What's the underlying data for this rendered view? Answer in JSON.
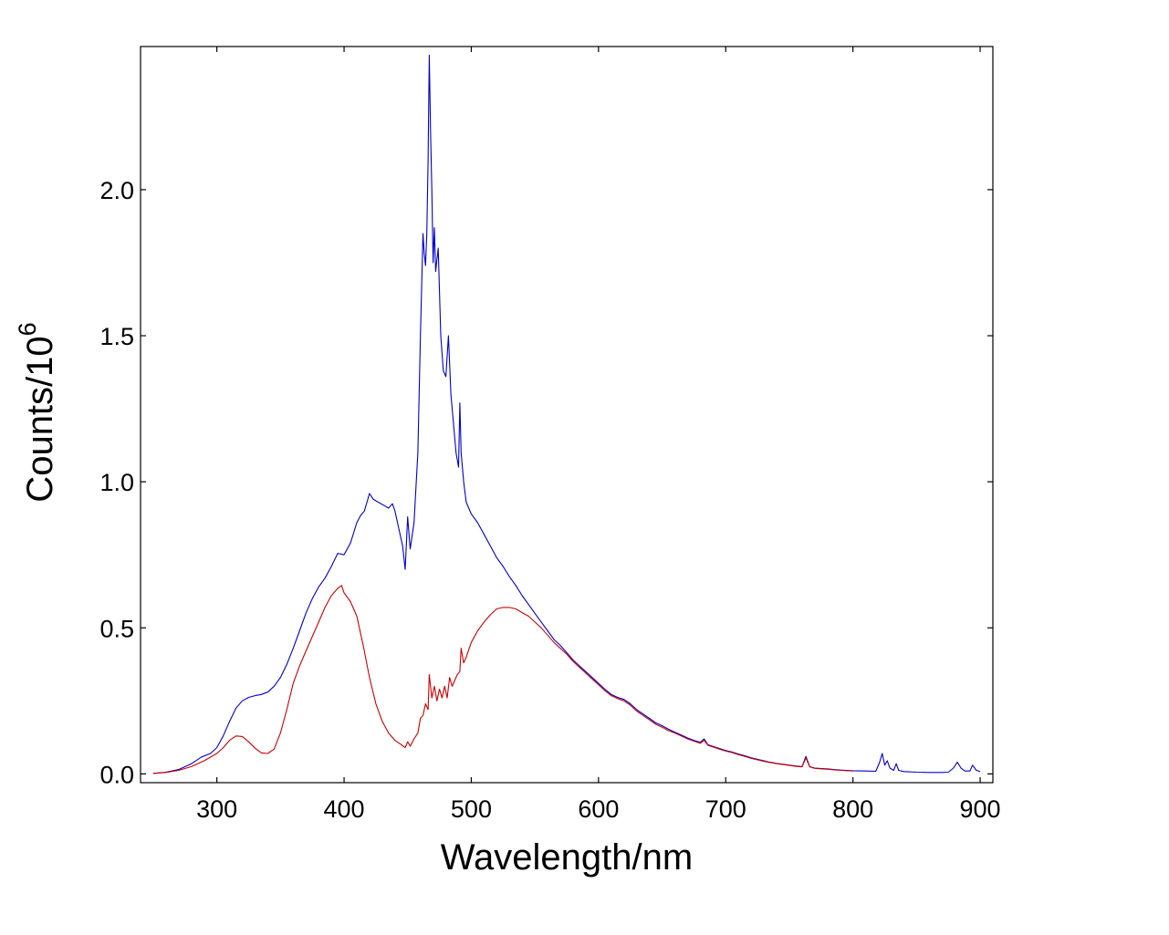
{
  "chart_data": {
    "type": "line",
    "title": "",
    "xlabel": "Wavelength/nm",
    "ylabel_base": "Counts/10",
    "ylabel_exponent": "6",
    "xlim": [
      240,
      910
    ],
    "ylim": [
      -0.03,
      2.49
    ],
    "xticks": [
      300,
      400,
      500,
      600,
      700,
      800,
      900
    ],
    "xtick_labels": [
      "300",
      "400",
      "500",
      "600",
      "700",
      "800",
      "900"
    ],
    "yticks": [
      0.0,
      0.5,
      1.0,
      1.5,
      2.0
    ],
    "ytick_labels": [
      "0.0",
      "0.5",
      "1.0",
      "1.5",
      "2.0"
    ],
    "grid": false,
    "legend": "none",
    "series": [
      {
        "name": "blue",
        "color": "#0000cc",
        "points": [
          [
            250,
            0.002
          ],
          [
            260,
            0.006
          ],
          [
            270,
            0.015
          ],
          [
            280,
            0.035
          ],
          [
            288,
            0.058
          ],
          [
            295,
            0.07
          ],
          [
            300,
            0.09
          ],
          [
            305,
            0.13
          ],
          [
            310,
            0.18
          ],
          [
            315,
            0.225
          ],
          [
            320,
            0.25
          ],
          [
            325,
            0.262
          ],
          [
            330,
            0.268
          ],
          [
            335,
            0.272
          ],
          [
            340,
            0.28
          ],
          [
            345,
            0.3
          ],
          [
            350,
            0.33
          ],
          [
            355,
            0.375
          ],
          [
            360,
            0.43
          ],
          [
            365,
            0.49
          ],
          [
            370,
            0.55
          ],
          [
            375,
            0.6
          ],
          [
            380,
            0.64
          ],
          [
            385,
            0.67
          ],
          [
            390,
            0.71
          ],
          [
            395,
            0.755
          ],
          [
            400,
            0.75
          ],
          [
            405,
            0.79
          ],
          [
            410,
            0.86
          ],
          [
            413,
            0.885
          ],
          [
            416,
            0.9
          ],
          [
            418,
            0.93
          ],
          [
            420,
            0.96
          ],
          [
            423,
            0.94
          ],
          [
            427,
            0.93
          ],
          [
            431,
            0.92
          ],
          [
            435,
            0.91
          ],
          [
            438,
            0.925
          ],
          [
            440,
            0.9
          ],
          [
            443,
            0.84
          ],
          [
            446,
            0.78
          ],
          [
            448,
            0.7
          ],
          [
            450,
            0.88
          ],
          [
            452,
            0.77
          ],
          [
            455,
            0.86
          ],
          [
            458,
            1.1
          ],
          [
            460,
            1.5
          ],
          [
            462,
            1.85
          ],
          [
            463,
            1.78
          ],
          [
            464,
            1.74
          ],
          [
            465,
            1.85
          ],
          [
            466,
            2.1
          ],
          [
            467,
            2.46
          ],
          [
            468,
            2.2
          ],
          [
            469,
            2.0
          ],
          [
            470,
            1.75
          ],
          [
            471,
            1.87
          ],
          [
            472,
            1.72
          ],
          [
            474,
            1.8
          ],
          [
            476,
            1.5
          ],
          [
            478,
            1.38
          ],
          [
            480,
            1.36
          ],
          [
            482,
            1.5
          ],
          [
            484,
            1.3
          ],
          [
            486,
            1.2
          ],
          [
            488,
            1.1
          ],
          [
            490,
            1.05
          ],
          [
            491,
            1.27
          ],
          [
            492,
            1.1
          ],
          [
            494,
            1.0
          ],
          [
            496,
            0.93
          ],
          [
            500,
            0.89
          ],
          [
            505,
            0.86
          ],
          [
            510,
            0.82
          ],
          [
            515,
            0.78
          ],
          [
            520,
            0.74
          ],
          [
            525,
            0.71
          ],
          [
            530,
            0.675
          ],
          [
            535,
            0.645
          ],
          [
            540,
            0.61
          ],
          [
            545,
            0.58
          ],
          [
            550,
            0.55
          ],
          [
            555,
            0.52
          ],
          [
            560,
            0.49
          ],
          [
            565,
            0.46
          ],
          [
            570,
            0.44
          ],
          [
            575,
            0.415
          ],
          [
            580,
            0.39
          ],
          [
            585,
            0.37
          ],
          [
            590,
            0.35
          ],
          [
            595,
            0.33
          ],
          [
            600,
            0.31
          ],
          [
            605,
            0.29
          ],
          [
            610,
            0.272
          ],
          [
            615,
            0.262
          ],
          [
            620,
            0.255
          ],
          [
            625,
            0.24
          ],
          [
            630,
            0.22
          ],
          [
            635,
            0.205
          ],
          [
            640,
            0.19
          ],
          [
            645,
            0.175
          ],
          [
            650,
            0.165
          ],
          [
            655,
            0.153
          ],
          [
            660,
            0.143
          ],
          [
            665,
            0.133
          ],
          [
            670,
            0.123
          ],
          [
            675,
            0.115
          ],
          [
            680,
            0.108
          ],
          [
            683,
            0.12
          ],
          [
            686,
            0.1
          ],
          [
            690,
            0.094
          ],
          [
            695,
            0.087
          ],
          [
            700,
            0.08
          ],
          [
            705,
            0.075
          ],
          [
            710,
            0.068
          ],
          [
            715,
            0.062
          ],
          [
            720,
            0.055
          ],
          [
            725,
            0.05
          ],
          [
            730,
            0.045
          ],
          [
            735,
            0.04
          ],
          [
            740,
            0.036
          ],
          [
            745,
            0.033
          ],
          [
            750,
            0.03
          ],
          [
            755,
            0.027
          ],
          [
            760,
            0.025
          ],
          [
            763,
            0.06
          ],
          [
            766,
            0.025
          ],
          [
            770,
            0.02
          ],
          [
            780,
            0.017
          ],
          [
            790,
            0.013
          ],
          [
            800,
            0.011
          ],
          [
            810,
            0.01
          ],
          [
            818,
            0.009
          ],
          [
            821,
            0.04
          ],
          [
            823,
            0.07
          ],
          [
            825,
            0.03
          ],
          [
            827,
            0.045
          ],
          [
            829,
            0.02
          ],
          [
            832,
            0.012
          ],
          [
            834,
            0.035
          ],
          [
            836,
            0.012
          ],
          [
            840,
            0.008
          ],
          [
            850,
            0.006
          ],
          [
            860,
            0.005
          ],
          [
            870,
            0.005
          ],
          [
            875,
            0.006
          ],
          [
            879,
            0.02
          ],
          [
            882,
            0.04
          ],
          [
            885,
            0.02
          ],
          [
            888,
            0.01
          ],
          [
            892,
            0.01
          ],
          [
            894,
            0.03
          ],
          [
            897,
            0.012
          ],
          [
            900,
            0.008
          ]
        ]
      },
      {
        "name": "red",
        "color": "#cc0000",
        "points": [
          [
            250,
            0.002
          ],
          [
            260,
            0.005
          ],
          [
            270,
            0.012
          ],
          [
            280,
            0.025
          ],
          [
            290,
            0.045
          ],
          [
            300,
            0.07
          ],
          [
            305,
            0.09
          ],
          [
            310,
            0.115
          ],
          [
            315,
            0.13
          ],
          [
            320,
            0.128
          ],
          [
            325,
            0.11
          ],
          [
            330,
            0.088
          ],
          [
            335,
            0.072
          ],
          [
            340,
            0.07
          ],
          [
            345,
            0.085
          ],
          [
            350,
            0.14
          ],
          [
            355,
            0.22
          ],
          [
            360,
            0.31
          ],
          [
            365,
            0.37
          ],
          [
            370,
            0.42
          ],
          [
            375,
            0.47
          ],
          [
            380,
            0.52
          ],
          [
            385,
            0.57
          ],
          [
            390,
            0.61
          ],
          [
            395,
            0.635
          ],
          [
            398,
            0.645
          ],
          [
            400,
            0.62
          ],
          [
            405,
            0.59
          ],
          [
            410,
            0.54
          ],
          [
            415,
            0.44
          ],
          [
            420,
            0.33
          ],
          [
            425,
            0.24
          ],
          [
            430,
            0.18
          ],
          [
            435,
            0.14
          ],
          [
            440,
            0.115
          ],
          [
            445,
            0.1
          ],
          [
            448,
            0.09
          ],
          [
            450,
            0.11
          ],
          [
            452,
            0.095
          ],
          [
            455,
            0.12
          ],
          [
            458,
            0.14
          ],
          [
            460,
            0.19
          ],
          [
            462,
            0.2
          ],
          [
            464,
            0.24
          ],
          [
            466,
            0.22
          ],
          [
            467,
            0.34
          ],
          [
            469,
            0.26
          ],
          [
            471,
            0.3
          ],
          [
            473,
            0.25
          ],
          [
            475,
            0.29
          ],
          [
            477,
            0.26
          ],
          [
            479,
            0.3
          ],
          [
            481,
            0.26
          ],
          [
            483,
            0.33
          ],
          [
            485,
            0.3
          ],
          [
            487,
            0.32
          ],
          [
            489,
            0.34
          ],
          [
            491,
            0.35
          ],
          [
            492,
            0.43
          ],
          [
            494,
            0.38
          ],
          [
            496,
            0.4
          ],
          [
            500,
            0.45
          ],
          [
            505,
            0.49
          ],
          [
            510,
            0.52
          ],
          [
            515,
            0.545
          ],
          [
            520,
            0.565
          ],
          [
            525,
            0.57
          ],
          [
            530,
            0.57
          ],
          [
            535,
            0.565
          ],
          [
            540,
            0.552
          ],
          [
            545,
            0.54
          ],
          [
            550,
            0.52
          ],
          [
            555,
            0.5
          ],
          [
            560,
            0.475
          ],
          [
            565,
            0.45
          ],
          [
            570,
            0.43
          ],
          [
            575,
            0.41
          ],
          [
            580,
            0.385
          ],
          [
            585,
            0.365
          ],
          [
            590,
            0.345
          ],
          [
            595,
            0.325
          ],
          [
            600,
            0.305
          ],
          [
            605,
            0.285
          ],
          [
            610,
            0.268
          ],
          [
            615,
            0.258
          ],
          [
            620,
            0.25
          ],
          [
            625,
            0.235
          ],
          [
            630,
            0.215
          ],
          [
            635,
            0.2
          ],
          [
            640,
            0.185
          ],
          [
            645,
            0.17
          ],
          [
            650,
            0.16
          ],
          [
            655,
            0.148
          ],
          [
            660,
            0.14
          ],
          [
            665,
            0.13
          ],
          [
            670,
            0.12
          ],
          [
            675,
            0.112
          ],
          [
            680,
            0.105
          ],
          [
            683,
            0.115
          ],
          [
            686,
            0.098
          ],
          [
            690,
            0.092
          ],
          [
            695,
            0.085
          ],
          [
            700,
            0.078
          ],
          [
            705,
            0.073
          ],
          [
            710,
            0.066
          ],
          [
            715,
            0.06
          ],
          [
            720,
            0.053
          ],
          [
            725,
            0.048
          ],
          [
            730,
            0.043
          ],
          [
            735,
            0.039
          ],
          [
            740,
            0.035
          ],
          [
            745,
            0.032
          ],
          [
            750,
            0.029
          ],
          [
            755,
            0.026
          ],
          [
            760,
            0.024
          ],
          [
            763,
            0.055
          ],
          [
            766,
            0.024
          ],
          [
            770,
            0.019
          ],
          [
            780,
            0.016
          ],
          [
            790,
            0.012
          ],
          [
            800,
            0.01
          ]
        ]
      }
    ]
  }
}
